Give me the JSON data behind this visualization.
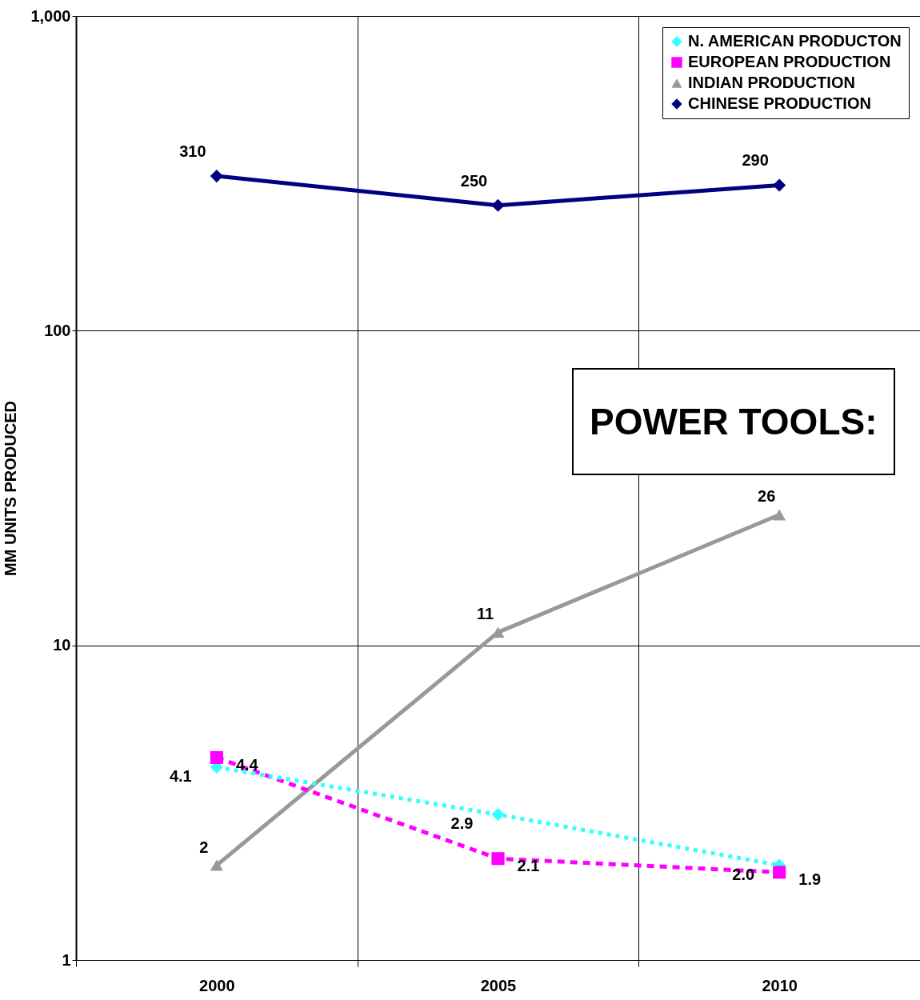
{
  "chart_data": {
    "type": "line",
    "title": "POWER TOOLS:",
    "ylabel": "MM UNITS PRODUCED",
    "categories": [
      "2000",
      "2005",
      "2010"
    ],
    "log": true,
    "ylim": [
      1,
      1000
    ],
    "yticks": [
      1,
      10,
      100,
      {
        "value": 1000,
        "label": "1,000"
      }
    ],
    "grid": true,
    "legend": "top right",
    "data_labels": true,
    "series": [
      {
        "name": "N. AMERICAN PRODUCTON",
        "color": "#33ffff",
        "marker": "diamond",
        "line_style": "dotted",
        "values": [
          4.1,
          2.9,
          2.0
        ],
        "value_labels": [
          "4.1",
          "2.9",
          "2.0"
        ]
      },
      {
        "name": "EUROPEAN PRODUCTION",
        "color": "#ff00ff",
        "marker": "square",
        "line_style": "dashed",
        "values": [
          4.4,
          2.1,
          1.9
        ]
      },
      {
        "name": "INDIAN PRODUCTION",
        "color": "#999999",
        "marker": "triangle",
        "line_style": "solid",
        "values": [
          2,
          11,
          26
        ]
      },
      {
        "name": "CHINESE PRODUCTION",
        "color": "#000080",
        "marker": "diamond",
        "line_style": "solid",
        "values": [
          310,
          250,
          290
        ]
      }
    ]
  }
}
